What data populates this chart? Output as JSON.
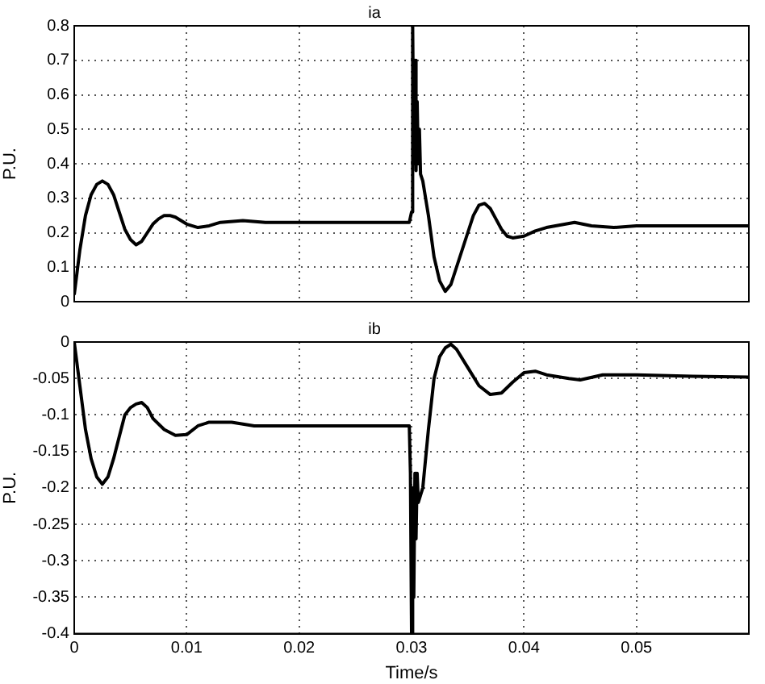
{
  "chart_data": [
    {
      "type": "line",
      "title": "ia",
      "ylabel": "P.U.",
      "xlim": [
        0,
        0.06
      ],
      "ylim": [
        0,
        0.8
      ],
      "yticks": [
        0,
        0.1,
        0.2,
        0.3,
        0.4,
        0.5,
        0.6,
        0.7,
        0.8
      ],
      "xticks": [
        0,
        0.01,
        0.02,
        0.03,
        0.04,
        0.05
      ],
      "tick_labels": "y",
      "grid": true,
      "legend": false,
      "marker": "none",
      "line_style": "solid",
      "series": [
        {
          "color": "#000000",
          "x": [
            0,
            0.0005,
            0.001,
            0.0015,
            0.002,
            0.0025,
            0.003,
            0.0035,
            0.004,
            0.0045,
            0.005,
            0.0055,
            0.006,
            0.0065,
            0.007,
            0.0075,
            0.008,
            0.0085,
            0.009,
            0.0095,
            0.01,
            0.011,
            0.012,
            0.013,
            0.015,
            0.017,
            0.02,
            0.025,
            0.0298,
            0.03,
            0.0301,
            0.0302,
            0.0303,
            0.0304,
            0.0305,
            0.0306,
            0.0307,
            0.0308,
            0.031,
            0.0315,
            0.032,
            0.0325,
            0.033,
            0.0335,
            0.034,
            0.035,
            0.0355,
            0.036,
            0.0365,
            0.037,
            0.0375,
            0.038,
            0.0385,
            0.039,
            0.04,
            0.041,
            0.042,
            0.0445,
            0.046,
            0.048,
            0.05,
            0.055,
            0.06
          ],
          "values": [
            0.02,
            0.15,
            0.25,
            0.31,
            0.34,
            0.35,
            0.34,
            0.31,
            0.26,
            0.21,
            0.18,
            0.165,
            0.175,
            0.2,
            0.225,
            0.24,
            0.25,
            0.25,
            0.245,
            0.235,
            0.225,
            0.215,
            0.22,
            0.23,
            0.235,
            0.23,
            0.23,
            0.23,
            0.23,
            0.26,
            0.8,
            0.4,
            0.7,
            0.38,
            0.58,
            0.4,
            0.5,
            0.37,
            0.35,
            0.25,
            0.13,
            0.06,
            0.03,
            0.05,
            0.1,
            0.2,
            0.25,
            0.28,
            0.285,
            0.27,
            0.24,
            0.21,
            0.19,
            0.185,
            0.19,
            0.205,
            0.215,
            0.23,
            0.22,
            0.215,
            0.22,
            0.22,
            0.22
          ]
        }
      ]
    },
    {
      "type": "line",
      "title": "ib",
      "xlabel": "Time/s",
      "ylabel": "P.U.",
      "xlim": [
        0,
        0.06
      ],
      "ylim": [
        -0.4,
        0
      ],
      "yticks": [
        0,
        -0.05,
        -0.1,
        -0.15,
        -0.2,
        -0.25,
        -0.3,
        -0.35,
        -0.4
      ],
      "xticks": [
        0,
        0.01,
        0.02,
        0.03,
        0.04,
        0.05
      ],
      "grid": true,
      "legend": false,
      "marker": "none",
      "line_style": "solid",
      "series": [
        {
          "color": "#000000",
          "x": [
            0,
            0.0005,
            0.001,
            0.0015,
            0.002,
            0.0025,
            0.003,
            0.0035,
            0.004,
            0.0045,
            0.005,
            0.0055,
            0.006,
            0.0065,
            0.007,
            0.008,
            0.009,
            0.01,
            0.011,
            0.012,
            0.014,
            0.016,
            0.02,
            0.025,
            0.0298,
            0.0299,
            0.03,
            0.0301,
            0.0302,
            0.0303,
            0.0304,
            0.0305,
            0.0306,
            0.031,
            0.0315,
            0.032,
            0.0325,
            0.033,
            0.0335,
            0.034,
            0.035,
            0.036,
            0.037,
            0.038,
            0.039,
            0.04,
            0.041,
            0.042,
            0.044,
            0.045,
            0.047,
            0.05,
            0.055,
            0.06
          ],
          "values": [
            0,
            -0.06,
            -0.12,
            -0.16,
            -0.185,
            -0.195,
            -0.185,
            -0.16,
            -0.13,
            -0.1,
            -0.09,
            -0.085,
            -0.083,
            -0.09,
            -0.105,
            -0.12,
            -0.128,
            -0.127,
            -0.115,
            -0.11,
            -0.11,
            -0.115,
            -0.115,
            -0.115,
            -0.115,
            -0.18,
            -0.4,
            -0.2,
            -0.35,
            -0.18,
            -0.27,
            -0.18,
            -0.22,
            -0.2,
            -0.12,
            -0.05,
            -0.02,
            -0.008,
            -0.003,
            -0.01,
            -0.035,
            -0.06,
            -0.072,
            -0.07,
            -0.055,
            -0.042,
            -0.04,
            -0.045,
            -0.05,
            -0.052,
            -0.045,
            -0.045,
            -0.047,
            -0.048
          ]
        }
      ]
    }
  ]
}
